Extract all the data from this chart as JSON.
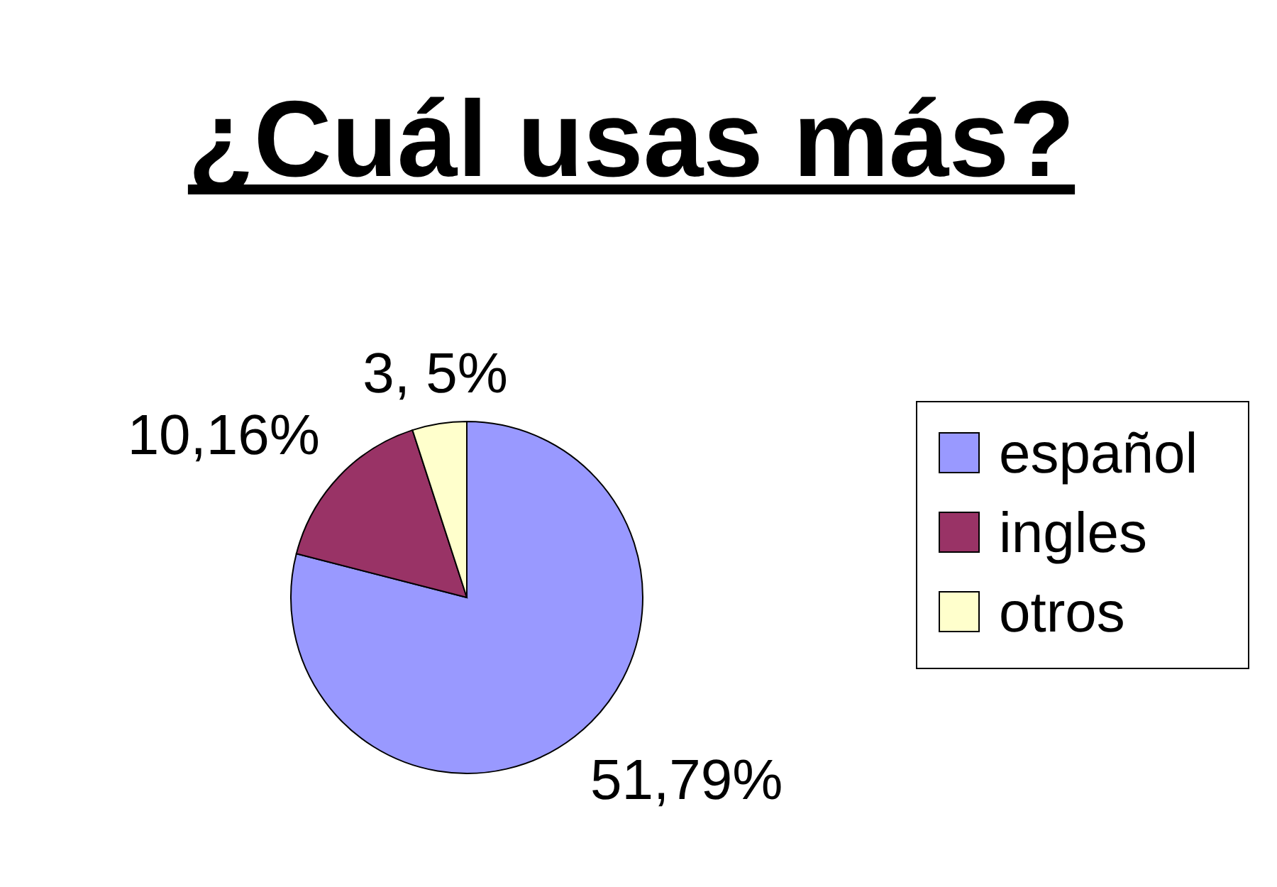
{
  "chart_data": {
    "type": "pie",
    "title": "¿Cuál usas más?",
    "categories": [
      "español",
      "ingles",
      "otros"
    ],
    "values": [
      79,
      16,
      5
    ],
    "colors": [
      "#9999ff",
      "#993366",
      "#ffffcc"
    ],
    "annotations": [
      "51,79%",
      "10,16%",
      "3, 5%"
    ],
    "legend": "right"
  }
}
